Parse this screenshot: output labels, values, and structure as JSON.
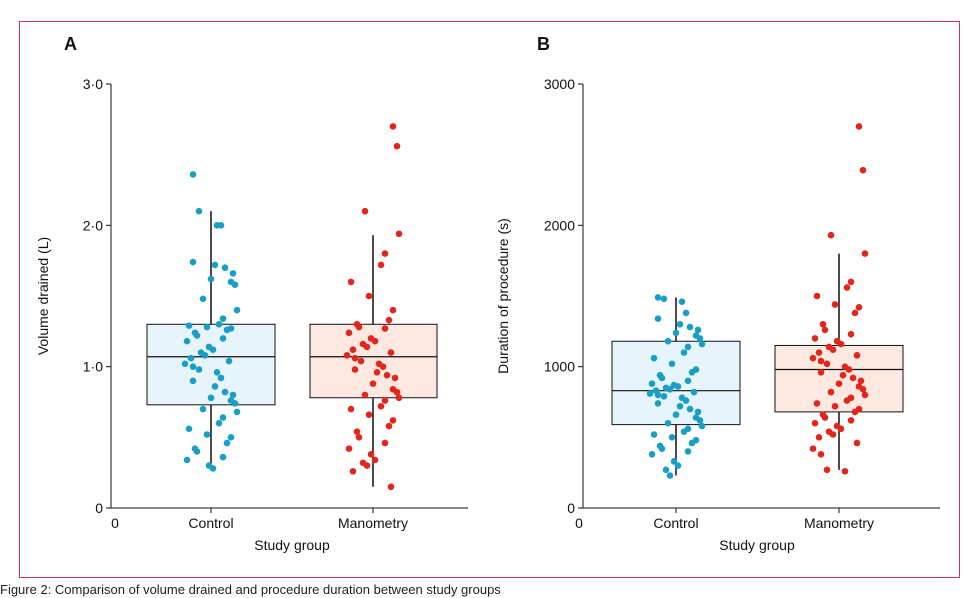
{
  "colors": {
    "control_point": "#1a9fc4",
    "manometry_point": "#e2261c",
    "control_box": "#e8f4fb",
    "manometry_box": "#fde9e1",
    "frame": "#c8326a"
  },
  "caption": "Figure 2: Comparison of volume drained and procedure duration between study groups",
  "chart_data": [
    {
      "type": "box",
      "panel_label": "A",
      "xlabel": "Study group",
      "ylabel": "Volume drained (L)",
      "origin_label": "0",
      "ylim": [
        0,
        3
      ],
      "yticks": [
        {
          "v": 0,
          "label": "0"
        },
        {
          "v": 1,
          "label": "1·0"
        },
        {
          "v": 2,
          "label": "2·0"
        },
        {
          "v": 3,
          "label": "3·0"
        }
      ],
      "categories": [
        "Control",
        "Manometry"
      ],
      "boxes": [
        {
          "q1": 0.73,
          "median": 1.07,
          "q3": 1.3,
          "whisker_low": 0.27,
          "whisker_high": 2.1
        },
        {
          "q1": 0.78,
          "median": 1.07,
          "q3": 1.3,
          "whisker_low": 0.15,
          "whisker_high": 1.93
        }
      ],
      "points": [
        [
          2.36,
          2.1,
          2.0,
          2.0,
          1.74,
          1.72,
          1.7,
          1.66,
          1.62,
          1.6,
          1.58,
          1.48,
          1.4,
          1.34,
          1.3,
          1.29,
          1.28,
          1.27,
          1.26,
          1.24,
          1.22,
          1.2,
          1.18,
          1.14,
          1.12,
          1.1,
          1.08,
          1.06,
          1.04,
          1.02,
          1.0,
          0.98,
          0.96,
          0.92,
          0.9,
          0.86,
          0.82,
          0.8,
          0.78,
          0.76,
          0.74,
          0.7,
          0.68,
          0.64,
          0.6,
          0.56,
          0.52,
          0.5,
          0.46,
          0.42,
          0.4,
          0.36,
          0.34,
          0.3,
          0.28
        ],
        [
          2.7,
          2.56,
          2.1,
          1.94,
          1.8,
          1.72,
          1.6,
          1.5,
          1.4,
          1.33,
          1.3,
          1.28,
          1.27,
          1.24,
          1.2,
          1.18,
          1.16,
          1.14,
          1.12,
          1.1,
          1.08,
          1.06,
          1.04,
          1.02,
          1.0,
          0.98,
          0.96,
          0.94,
          0.92,
          0.88,
          0.84,
          0.82,
          0.8,
          0.78,
          0.76,
          0.72,
          0.7,
          0.66,
          0.62,
          0.58,
          0.54,
          0.5,
          0.46,
          0.42,
          0.38,
          0.34,
          0.32,
          0.3,
          0.26,
          0.15
        ]
      ]
    },
    {
      "type": "box",
      "panel_label": "B",
      "xlabel": "Study group",
      "ylabel": "Duration of procedure (s)",
      "origin_label": "0",
      "ylim": [
        0,
        3000
      ],
      "yticks": [
        {
          "v": 0,
          "label": "0"
        },
        {
          "v": 1000,
          "label": "1000"
        },
        {
          "v": 2000,
          "label": "2000"
        },
        {
          "v": 3000,
          "label": "3000"
        }
      ],
      "categories": [
        "Control",
        "Manometry"
      ],
      "boxes": [
        {
          "q1": 590,
          "median": 830,
          "q3": 1180,
          "whisker_low": 230,
          "whisker_high": 1490
        },
        {
          "q1": 680,
          "median": 980,
          "q3": 1150,
          "whisker_low": 270,
          "whisker_high": 1800
        }
      ],
      "points": [
        [
          1490,
          1480,
          1460,
          1380,
          1340,
          1300,
          1280,
          1260,
          1240,
          1220,
          1200,
          1180,
          1160,
          1140,
          1100,
          1060,
          1020,
          980,
          960,
          940,
          920,
          900,
          880,
          870,
          860,
          850,
          840,
          830,
          820,
          810,
          800,
          790,
          780,
          760,
          740,
          720,
          700,
          680,
          660,
          640,
          620,
          600,
          580,
          560,
          540,
          520,
          500,
          480,
          460,
          440,
          420,
          400,
          380,
          330,
          300,
          270,
          230
        ],
        [
          2700,
          2390,
          1930,
          1800,
          1600,
          1560,
          1500,
          1440,
          1420,
          1380,
          1300,
          1260,
          1230,
          1200,
          1180,
          1160,
          1140,
          1120,
          1100,
          1080,
          1060,
          1040,
          1020,
          1000,
          980,
          960,
          940,
          920,
          900,
          880,
          860,
          840,
          820,
          800,
          780,
          760,
          740,
          720,
          700,
          680,
          660,
          640,
          620,
          600,
          580,
          560,
          540,
          520,
          500,
          460,
          420,
          380,
          270,
          260
        ]
      ]
    }
  ]
}
